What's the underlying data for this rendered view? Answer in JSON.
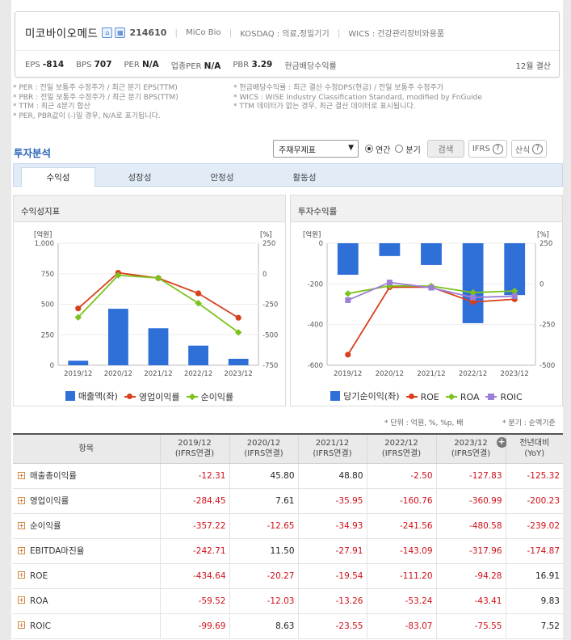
{
  "company": {
    "name": "미코바이오메드",
    "code": "214610",
    "eng_name": "MiCo Bio",
    "market": "KOSDAQ : 의료,정밀기기",
    "wics": "WICS : 건강관리장비와용품",
    "home_icon": "home-icon",
    "building_icon": "building-icon"
  },
  "metrics": {
    "eps_label": "EPS",
    "eps_value": "-814",
    "bps_label": "BPS",
    "bps_value": "707",
    "per_label": "PER",
    "per_value": "N/A",
    "sector_per_label": "업종PER",
    "sector_per_value": "N/A",
    "pbr_label": "PBR",
    "pbr_value": "3.29",
    "div_label": "현금배당수익률",
    "settlement": "12월 결산"
  },
  "notes": {
    "left": [
      "* PER : 전일 보통주 수정주가 / 최근 분기 EPS(TTM)",
      "* PBR : 전일 보통주 수정주가 / 최근 분기 BPS(TTM)",
      "* TTM : 최근 4분기 합산",
      "* PER, PBR값이 (-)일 경우, N/A로 표기됩니다."
    ],
    "right": [
      "* 현금배당수익률 : 최근 결산 수정DPS(현금) / 전일 보통주 수정주가",
      "* WICS : WISE Industry Classification Standard, modified by FnGuide",
      "* TTM 데이터가 없는 경우, 최근 결산 데이터로 표시됩니다."
    ]
  },
  "section": {
    "title": "투자분석",
    "select_value": "주재무제표",
    "radio_annual": "연간",
    "radio_quarter": "분기",
    "search_label": "검색",
    "ifrs_label": "IFRS",
    "calc_label": "산식"
  },
  "tabs": [
    "수익성",
    "성장성",
    "안정성",
    "활동성"
  ],
  "chart_left_title": "수익성지표",
  "chart_right_title": "투자수익률",
  "chart_data": [
    {
      "type": "bar+line",
      "title": "수익성지표",
      "categories": [
        "2019/12",
        "2020/12",
        "2021/12",
        "2022/12",
        "2023/12"
      ],
      "left_unit": "[억원]",
      "right_unit": "[%]",
      "left_ylim": [
        0,
        1000
      ],
      "left_ticks": [
        "0",
        "250",
        "500",
        "750",
        "1,000"
      ],
      "right_ylim": [
        -750,
        250
      ],
      "right_ticks": [
        "-750",
        "-500",
        "-250",
        "0",
        "250"
      ],
      "series": [
        {
          "name": "매출액(좌)",
          "kind": "bar",
          "axis": "left",
          "color": "#2f6fd8",
          "values": [
            37,
            463,
            303,
            161,
            53
          ]
        },
        {
          "name": "영업이익률",
          "kind": "line",
          "axis": "right",
          "color": "#d8401c",
          "values": [
            -284.45,
            7.61,
            -35.95,
            -160.76,
            -360.99
          ]
        },
        {
          "name": "순이익률",
          "kind": "line",
          "axis": "right",
          "color": "#7cc21c",
          "values": [
            -357.22,
            -12.65,
            -34.93,
            -241.56,
            -480.58
          ]
        }
      ],
      "legend_position": "bottom"
    },
    {
      "type": "bar+line",
      "title": "투자수익률",
      "categories": [
        "2019/12",
        "2020/12",
        "2021/12",
        "2022/12",
        "2023/12"
      ],
      "left_unit": "[억원]",
      "right_unit": "[%]",
      "left_ylim": [
        -600,
        0
      ],
      "left_ticks": [
        "-600",
        "-400",
        "-200",
        "0"
      ],
      "right_ylim": [
        -500,
        250
      ],
      "right_ticks": [
        "-500",
        "-250",
        "0",
        "250"
      ],
      "series": [
        {
          "name": "당기순이익(좌)",
          "kind": "bar",
          "axis": "left",
          "color": "#2f6fd8",
          "values": [
            -155,
            -63,
            -107,
            -393,
            -255
          ]
        },
        {
          "name": "ROE",
          "kind": "line",
          "axis": "right",
          "color": "#d8401c",
          "values": [
            -434.64,
            -20.27,
            -19.54,
            -111.2,
            -94.28
          ]
        },
        {
          "name": "ROA",
          "kind": "line",
          "axis": "right",
          "color": "#7cc21c",
          "values": [
            -59.52,
            -12.03,
            -13.26,
            -53.24,
            -43.41
          ]
        },
        {
          "name": "ROIC",
          "kind": "line",
          "axis": "right",
          "color": "#9b7fd6",
          "values": [
            -99.69,
            8.63,
            -23.55,
            -83.07,
            -75.55
          ]
        }
      ],
      "legend_position": "bottom"
    }
  ],
  "table": {
    "unit_note": "* 단위 : 억원, %, %p, 배",
    "quarter_note": "* 분기 : 순액기준",
    "headers": {
      "item": "항목",
      "years": [
        "2019/12",
        "2020/12",
        "2021/12",
        "2022/12",
        "2023/12"
      ],
      "basis": "(IFRS연결)",
      "yoy_line1": "전년대비",
      "yoy_line2": "(YoY)"
    },
    "rows": [
      {
        "name": "매출총이익률",
        "values": [
          "-12.31",
          "45.80",
          "48.80",
          "-2.50",
          "-127.83"
        ],
        "yoy": "-125.32"
      },
      {
        "name": "영업이익률",
        "values": [
          "-284.45",
          "7.61",
          "-35.95",
          "-160.76",
          "-360.99"
        ],
        "yoy": "-200.23"
      },
      {
        "name": "순이익률",
        "values": [
          "-357.22",
          "-12.65",
          "-34.93",
          "-241.56",
          "-480.58"
        ],
        "yoy": "-239.02"
      },
      {
        "name": "EBITDA마진율",
        "values": [
          "-242.71",
          "11.50",
          "-27.91",
          "-143.09",
          "-317.96"
        ],
        "yoy": "-174.87"
      },
      {
        "name": "ROE",
        "values": [
          "-434.64",
          "-20.27",
          "-19.54",
          "-111.20",
          "-94.28"
        ],
        "yoy": "16.91"
      },
      {
        "name": "ROA",
        "values": [
          "-59.52",
          "-12.03",
          "-13.26",
          "-53.24",
          "-43.41"
        ],
        "yoy": "9.83"
      },
      {
        "name": "ROIC",
        "values": [
          "-99.69",
          "8.63",
          "-23.55",
          "-83.07",
          "-75.55"
        ],
        "yoy": "7.52"
      }
    ]
  }
}
